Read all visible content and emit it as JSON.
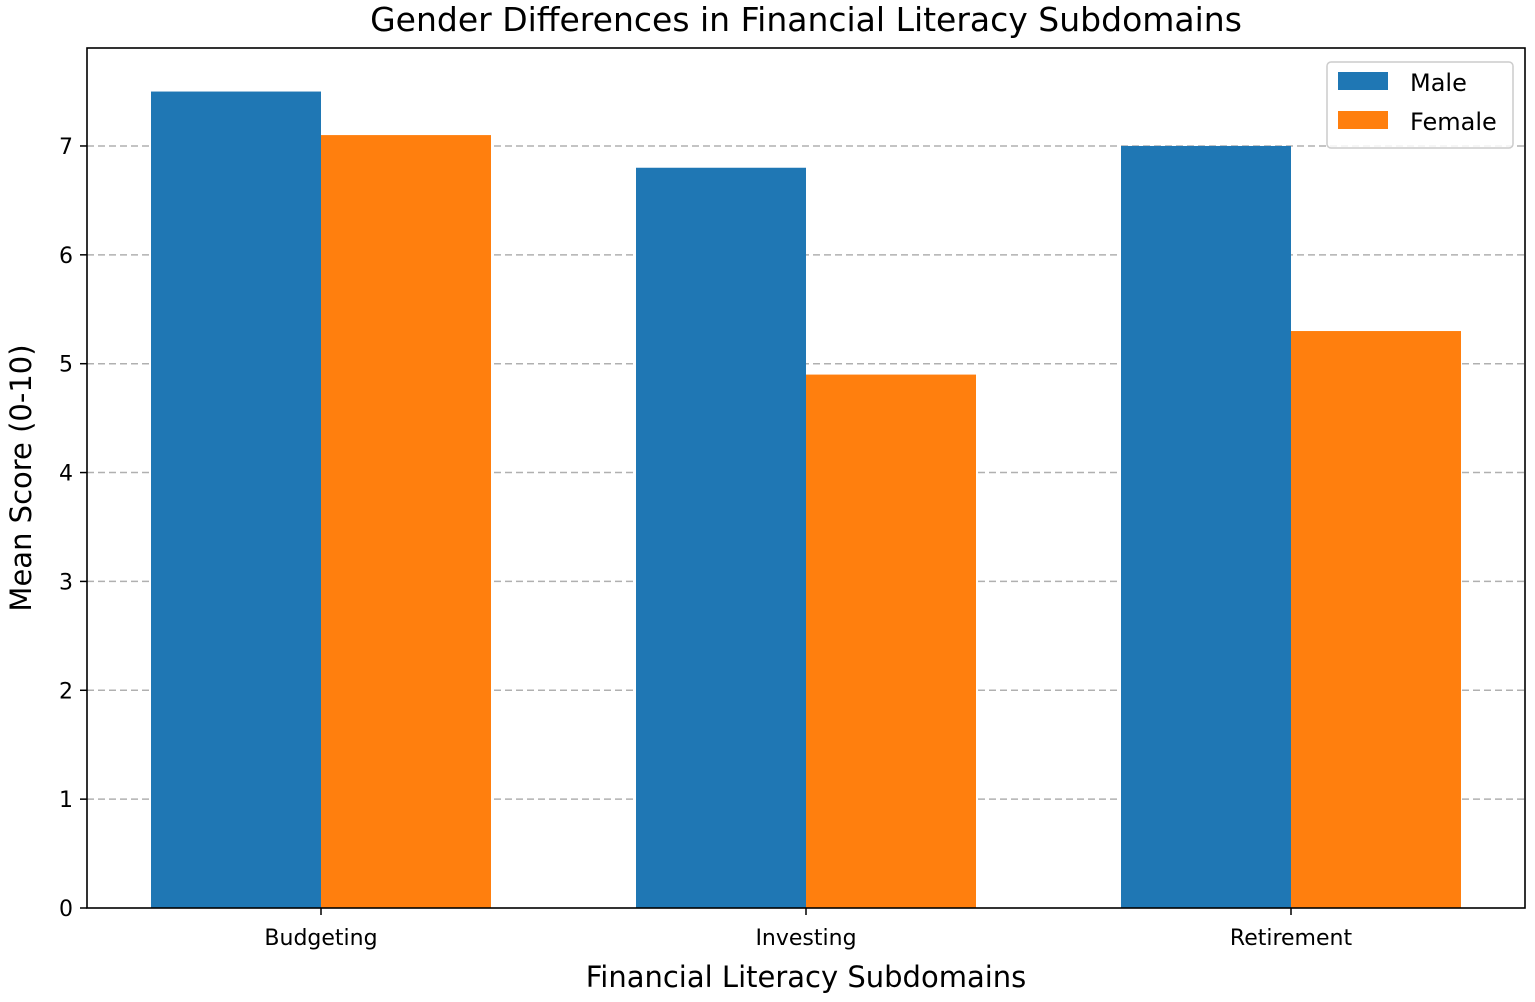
{
  "chart_data": {
    "type": "bar",
    "title": "Gender Differences in Financial Literacy Subdomains",
    "xlabel": "Financial Literacy Subdomains",
    "ylabel": "Mean Score (0-10)",
    "categories": [
      "Budgeting",
      "Investing",
      "Retirement"
    ],
    "series": [
      {
        "name": "Male",
        "color": "#1f77b4",
        "values": [
          7.5,
          6.8,
          7.0
        ]
      },
      {
        "name": "Female",
        "color": "#ff7f0e",
        "values": [
          7.1,
          4.9,
          5.3
        ]
      }
    ],
    "ylim": [
      0,
      7.9
    ],
    "yticks": [
      0,
      1,
      2,
      3,
      4,
      5,
      6,
      7
    ],
    "grid": "horizontal-dashed",
    "legend_position": "top-right"
  }
}
